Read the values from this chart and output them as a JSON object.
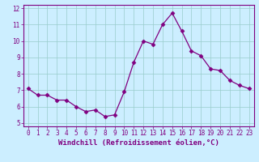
{
  "x": [
    0,
    1,
    2,
    3,
    4,
    5,
    6,
    7,
    8,
    9,
    10,
    11,
    12,
    13,
    14,
    15,
    16,
    17,
    18,
    19,
    20,
    21,
    22,
    23
  ],
  "y": [
    7.1,
    6.7,
    6.7,
    6.4,
    6.4,
    6.0,
    5.7,
    5.8,
    5.4,
    5.5,
    6.9,
    8.7,
    10.0,
    9.8,
    11.0,
    11.7,
    10.6,
    9.4,
    9.1,
    8.3,
    8.2,
    7.6,
    7.3,
    7.1
  ],
  "line_color": "#800080",
  "marker": "D",
  "marker_size": 2.5,
  "background_color": "#cceeff",
  "grid_color": "#99cccc",
  "xlabel": "Windchill (Refroidissement éolien,°C)",
  "xlabel_fontsize": 6.5,
  "tick_fontsize": 5.5,
  "ylim": [
    4.8,
    12.2
  ],
  "yticks": [
    5,
    6,
    7,
    8,
    9,
    10,
    11,
    12
  ],
  "xlim": [
    -0.5,
    23.5
  ],
  "xticks": [
    0,
    1,
    2,
    3,
    4,
    5,
    6,
    7,
    8,
    9,
    10,
    11,
    12,
    13,
    14,
    15,
    16,
    17,
    18,
    19,
    20,
    21,
    22,
    23
  ],
  "tick_color": "#800080",
  "label_color": "#800080",
  "axis_color": "#800080",
  "spine_color": "#800080"
}
